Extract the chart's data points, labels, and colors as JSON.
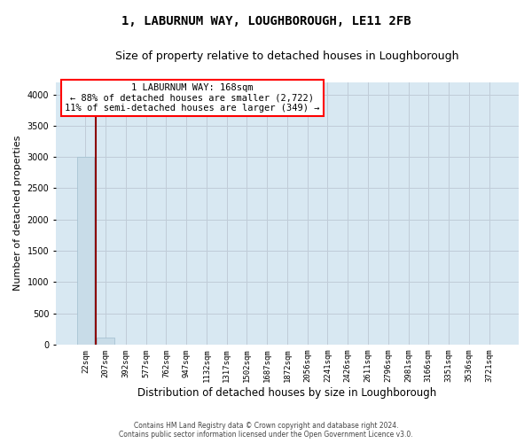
{
  "title": "1, LABURNUM WAY, LOUGHBOROUGH, LE11 2FB",
  "subtitle": "Size of property relative to detached houses in Loughborough",
  "xlabel": "Distribution of detached houses by size in Loughborough",
  "ylabel": "Number of detached properties",
  "footer1": "Contains HM Land Registry data © Crown copyright and database right 2024.",
  "footer2": "Contains public sector information licensed under the Open Government Licence v3.0.",
  "categories": [
    "22sqm",
    "207sqm",
    "392sqm",
    "577sqm",
    "762sqm",
    "947sqm",
    "1132sqm",
    "1317sqm",
    "1502sqm",
    "1687sqm",
    "1872sqm",
    "2056sqm",
    "2241sqm",
    "2426sqm",
    "2611sqm",
    "2796sqm",
    "2981sqm",
    "3166sqm",
    "3351sqm",
    "3536sqm",
    "3721sqm"
  ],
  "values": [
    3000,
    110,
    0,
    0,
    0,
    0,
    0,
    0,
    0,
    0,
    0,
    0,
    0,
    0,
    0,
    0,
    0,
    0,
    0,
    0,
    0
  ],
  "ylim": [
    0,
    4200
  ],
  "yticks": [
    0,
    500,
    1000,
    1500,
    2000,
    2500,
    3000,
    3500,
    4000
  ],
  "bar_color": "#c8dce8",
  "bar_edge_color": "#a0bece",
  "grid_color": "#c0ccd8",
  "bg_color": "#d8e8f2",
  "property_line_x": 0.5,
  "annotation_text_line1": "1 LABURNUM WAY: 168sqm",
  "annotation_text_line2": "← 88% of detached houses are smaller (2,722)",
  "annotation_text_line3": "11% of semi-detached houses are larger (349) →",
  "annotation_box_facecolor": "white",
  "annotation_border_color": "red",
  "property_line_color": "#8b0000",
  "title_fontsize": 10,
  "subtitle_fontsize": 9,
  "tick_fontsize": 6.5,
  "ylabel_fontsize": 8,
  "xlabel_fontsize": 8.5,
  "annot_fontsize": 7.5
}
